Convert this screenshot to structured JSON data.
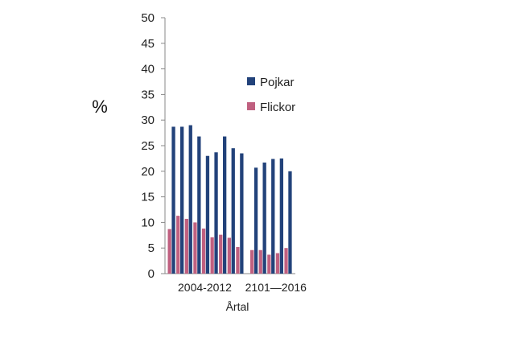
{
  "chart_data": {
    "type": "bar",
    "title": "",
    "ylabel": "%",
    "xlabel": "Årtal",
    "ylim": [
      0,
      50
    ],
    "yticks": [
      0,
      5,
      10,
      15,
      20,
      25,
      30,
      35,
      40,
      45,
      50
    ],
    "groups": [
      {
        "label": "2004-2012",
        "count": 9
      },
      {
        "label": "2101—2016",
        "count": 5
      }
    ],
    "series": [
      {
        "name": "Pojkar",
        "color": "#22427a",
        "values": [
          28.7,
          28.7,
          29.0,
          26.8,
          23.0,
          23.7,
          26.8,
          24.5,
          23.5,
          20.7,
          21.7,
          22.4,
          22.5,
          20.0
        ]
      },
      {
        "name": "Flickor",
        "color": "#c06080",
        "values": [
          8.7,
          11.3,
          10.7,
          10.0,
          8.8,
          7.1,
          7.6,
          7.0,
          5.2,
          4.6,
          4.6,
          3.7,
          4.0,
          5.0
        ]
      }
    ],
    "legend_position": "right"
  }
}
